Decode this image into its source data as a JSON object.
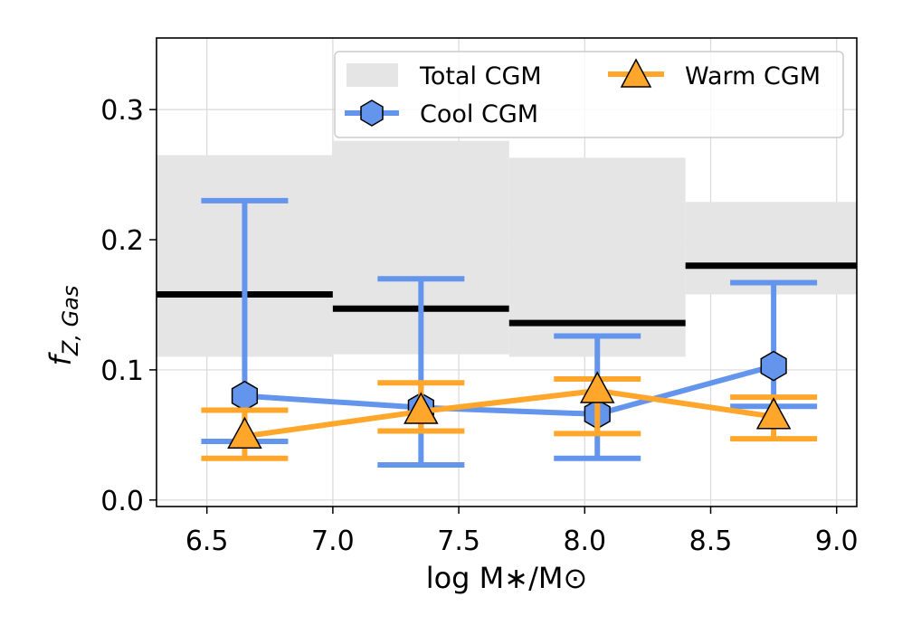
{
  "chart_data": {
    "type": "line",
    "xlabel": "log M∗/M⊙",
    "ylabel_main": "f",
    "ylabel_sub": "Z, Gas",
    "xlim": [
      6.3,
      9.08
    ],
    "ylim": [
      -0.005,
      0.355
    ],
    "x_ticks": [
      6.5,
      7.0,
      7.5,
      8.0,
      8.5,
      9.0
    ],
    "x_tick_labels": [
      "6.5",
      "7.0",
      "7.5",
      "8.0",
      "8.5",
      "9.0"
    ],
    "y_ticks": [
      0.0,
      0.1,
      0.2,
      0.3
    ],
    "y_tick_labels": [
      "0.0",
      "0.1",
      "0.2",
      "0.3"
    ],
    "grid": true,
    "legend_position": "top-right",
    "series": [
      {
        "name": "Total CGM",
        "kind": "band",
        "color": "#000000",
        "band_color": "#e5e5e5",
        "bins": [
          {
            "x_min": 6.3,
            "x_max": 7.0,
            "median": 0.158,
            "low": 0.11,
            "high": 0.265
          },
          {
            "x_min": 7.0,
            "x_max": 7.7,
            "median": 0.147,
            "low": 0.112,
            "high": 0.276
          },
          {
            "x_min": 7.7,
            "x_max": 8.4,
            "median": 0.136,
            "low": 0.11,
            "high": 0.263
          },
          {
            "x_min": 8.4,
            "x_max": 9.08,
            "median": 0.18,
            "low": 0.158,
            "high": 0.229
          }
        ]
      },
      {
        "name": "Cool CGM",
        "kind": "line",
        "marker": "hexagon",
        "color": "#6495ed",
        "x": [
          6.65,
          7.35,
          8.05,
          8.75
        ],
        "y": [
          0.08,
          0.071,
          0.066,
          0.103
        ],
        "err_low": [
          0.045,
          0.027,
          0.032,
          0.072
        ],
        "err_high": [
          0.23,
          0.17,
          0.126,
          0.167
        ]
      },
      {
        "name": "Warm CGM",
        "kind": "line",
        "marker": "triangle",
        "color": "#ffa62b",
        "x": [
          6.65,
          7.35,
          8.05,
          8.75
        ],
        "y": [
          0.049,
          0.068,
          0.084,
          0.064
        ],
        "err_low": [
          0.032,
          0.053,
          0.051,
          0.047
        ],
        "err_high": [
          0.069,
          0.09,
          0.093,
          0.079
        ]
      }
    ]
  }
}
